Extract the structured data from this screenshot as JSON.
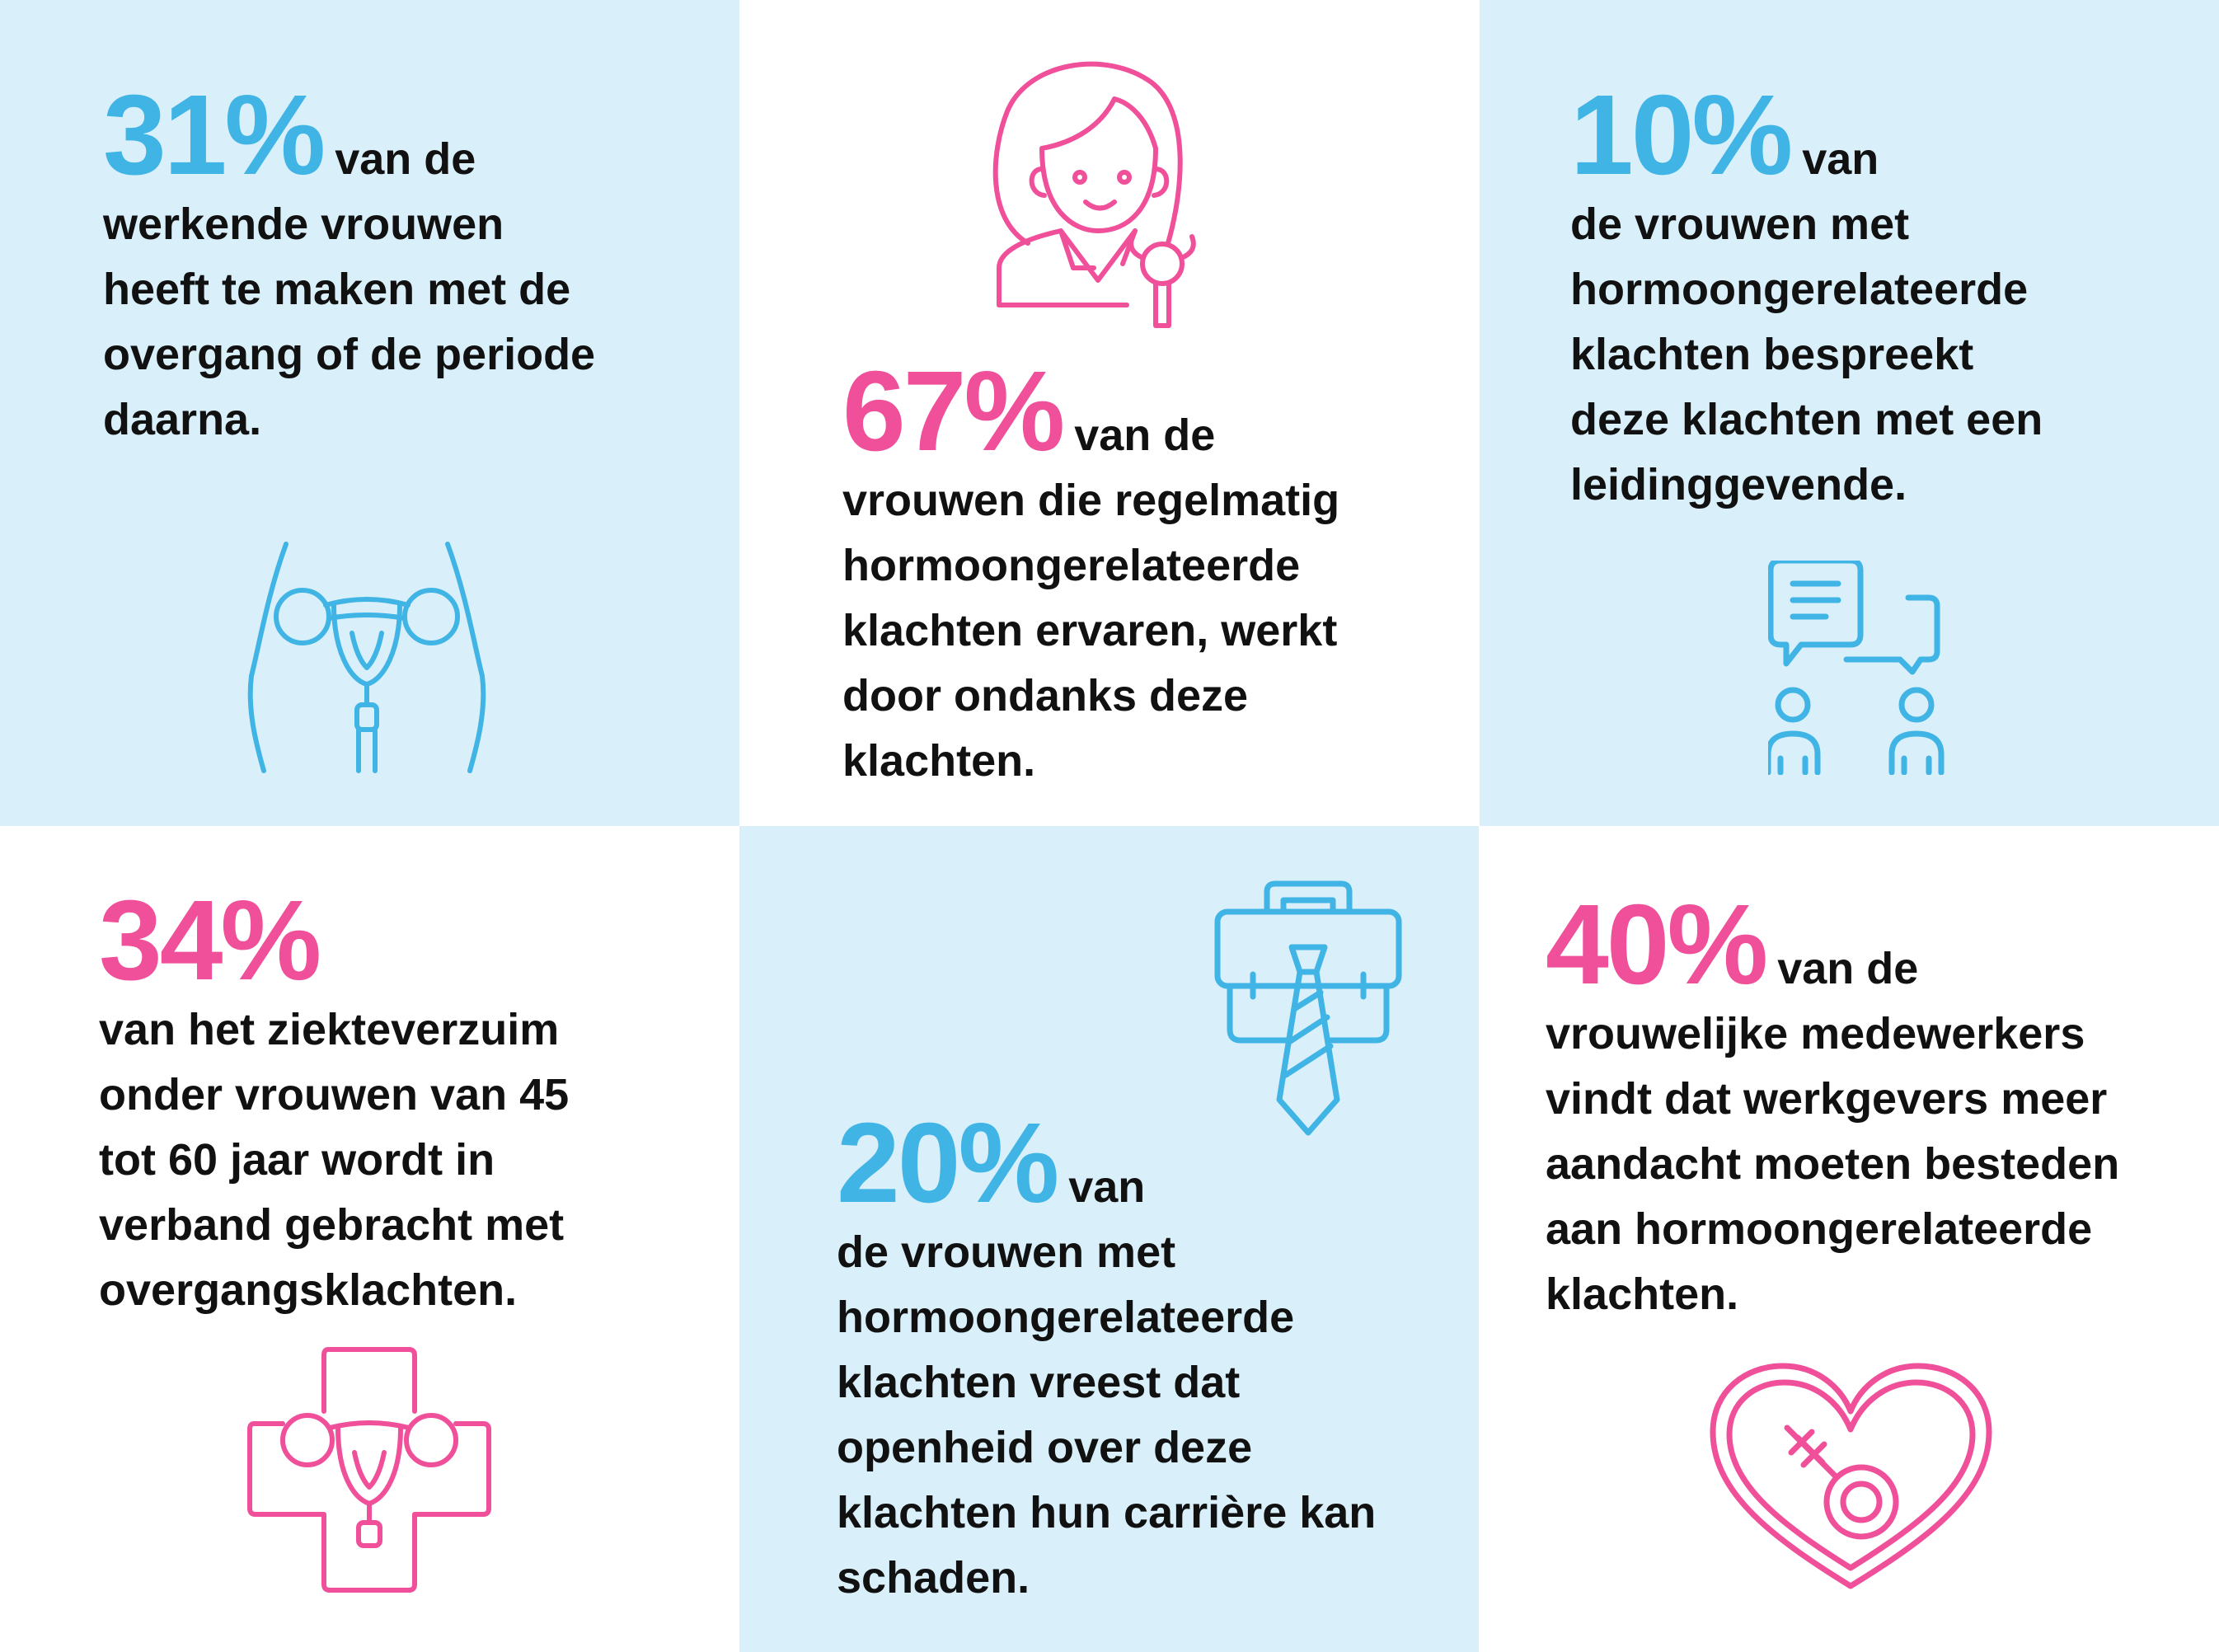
{
  "colors": {
    "blue": "#40b4e5",
    "pink": "#f04f9a",
    "panel_blue": "#d9f0fa",
    "text": "#111111"
  },
  "stats": [
    {
      "percent": "31%",
      "l1": "van de",
      "l2": "werkende vrouwen",
      "l3": "heeft te maken met de",
      "l4": "overgang of de periode",
      "l5": "daarna.",
      "icon": "uterus-hips-icon"
    },
    {
      "percent": "67%",
      "l1": "van de",
      "l2": "vrouwen die regelmatig",
      "l3": "hormoongerelateerde",
      "l4": "klachten ervaren, werkt",
      "l5": "door ondanks deze",
      "l6": "klachten.",
      "icon": "female-doctor-icon"
    },
    {
      "percent": "10%",
      "l1": "van",
      "l2": "de vrouwen met",
      "l3": "hormoongerelateerde",
      "l4": "klachten bespreekt",
      "l5": "deze klachten met een",
      "l6": "leidinggevende.",
      "icon": "conversation-icon"
    },
    {
      "percent": "34%",
      "l2": "van het ziekteverzuim",
      "l3": "onder vrouwen van 45",
      "l4": "tot 60 jaar wordt in",
      "l5": "verband gebracht met",
      "l6": "overgangsklachten.",
      "icon": "medical-cross-uterus-icon"
    },
    {
      "percent": "20%",
      "l1": "van",
      "l2": "de vrouwen met",
      "l3": "hormoongerelateerde",
      "l4": "klachten vreest dat",
      "l5": "openheid over deze",
      "l6": "klachten hun carrière kan",
      "l7": "schaden.",
      "icon": "briefcase-tie-icon"
    },
    {
      "percent": "40%",
      "l1": "van de",
      "l2": "vrouwelijke medewerkers",
      "l3": "vindt dat werkgevers meer",
      "l4": "aandacht moeten besteden",
      "l5": "aan hormoongerelateerde",
      "l6": "klachten.",
      "icon": "heart-female-icon"
    }
  ]
}
